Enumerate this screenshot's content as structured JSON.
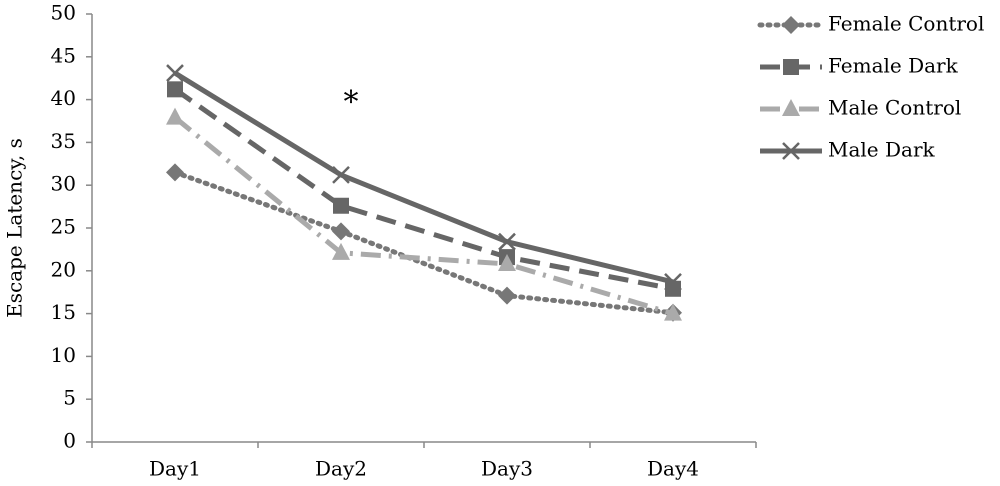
{
  "chart_data": {
    "type": "line",
    "y_label": "Escape Latency, s",
    "categories": [
      "Day1",
      "Day2",
      "Day3",
      "Day4"
    ],
    "series": [
      {
        "name": "Female Control",
        "color": "#777777",
        "marker": "diamond",
        "dash": "dotted",
        "values": [
          31.5,
          24.6,
          17.1,
          15.1
        ]
      },
      {
        "name": "Female Dark",
        "color": "#666666",
        "marker": "square",
        "dash": "dashed",
        "values": [
          41.2,
          27.6,
          21.6,
          17.9
        ]
      },
      {
        "name": "Male Control",
        "color": "#aaaaaa",
        "marker": "triangle",
        "dash": "dashdot",
        "values": [
          37.9,
          22.1,
          20.8,
          15.0
        ]
      },
      {
        "name": "Male Dark",
        "color": "#666666",
        "marker": "x",
        "dash": "solid",
        "values": [
          43.1,
          31.2,
          23.4,
          18.7
        ]
      }
    ],
    "annotations": [
      "*"
    ],
    "ylim": [
      0,
      50
    ],
    "yticks": [
      0,
      5,
      10,
      15,
      20,
      25,
      30,
      35,
      40,
      45,
      50
    ],
    "legend": "right"
  }
}
